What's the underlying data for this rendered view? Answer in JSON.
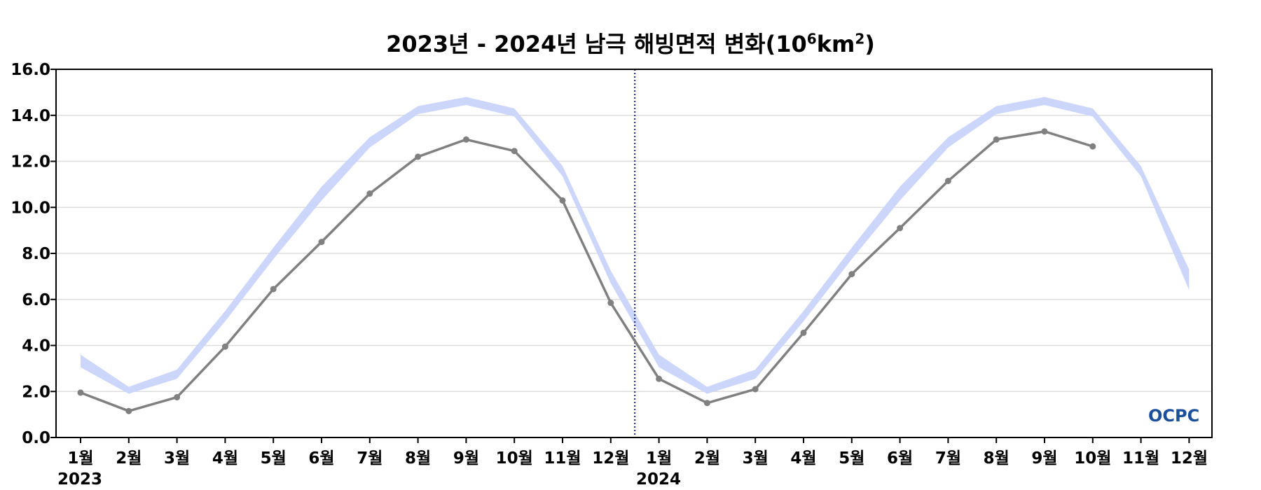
{
  "chart_data": {
    "type": "line",
    "title_parts": [
      "2023년 - 2024년 남극 해빙면적 변화(10",
      "6",
      "km",
      "2",
      ")"
    ],
    "ylim": [
      0,
      16
    ],
    "y_ticks": [
      "0.0",
      "2.0",
      "4.0",
      "6.0",
      "8.0",
      "10.0",
      "12.0",
      "14.0",
      "16.0"
    ],
    "x_tick_labels": [
      "1월",
      "2월",
      "3월",
      "4월",
      "5월",
      "6월",
      "7월",
      "8월",
      "9월",
      "10월",
      "11월",
      "12월",
      "1월",
      "2월",
      "3월",
      "4월",
      "5월",
      "6월",
      "7월",
      "8월",
      "9월",
      "10월",
      "11월",
      "12월"
    ],
    "year_labels": [
      "2023",
      "2024"
    ],
    "grid": "horizontal",
    "divider_after_index": 11,
    "series": [
      {
        "values": [
          1.95,
          1.15,
          1.75,
          3.95,
          6.45,
          8.5,
          10.6,
          12.2,
          12.95,
          12.45,
          10.3,
          5.85,
          2.55,
          1.5,
          2.1,
          4.55,
          7.1,
          9.1,
          11.15,
          12.95,
          13.3,
          12.65
        ],
        "color": "#808080"
      },
      {
        "type": "band",
        "lower": [
          3.05,
          1.9,
          2.55,
          5.05,
          7.75,
          10.3,
          12.6,
          14.05,
          14.45,
          13.95,
          11.35,
          6.7,
          3.05,
          1.9,
          2.55,
          5.05,
          7.75,
          10.3,
          12.6,
          14.05,
          14.45,
          13.95,
          11.35,
          6.4
        ],
        "upper": [
          3.6,
          2.2,
          2.95,
          5.5,
          8.25,
          10.9,
          13.05,
          14.4,
          14.8,
          14.3,
          11.8,
          7.25,
          3.6,
          2.2,
          2.95,
          5.5,
          8.25,
          10.9,
          13.05,
          14.4,
          14.8,
          14.3,
          11.8,
          7.3
        ],
        "color": "#cbd6fa"
      }
    ]
  },
  "logo": {
    "text": "OCPC",
    "colors": [
      "#1b4f9c",
      "#3a9ad9"
    ]
  }
}
